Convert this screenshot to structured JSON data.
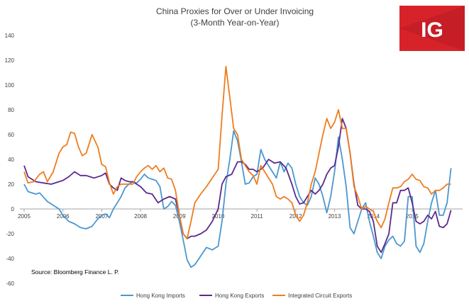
{
  "chart_data": {
    "type": "line",
    "title": "China Proxies for Over or Under Invoicing",
    "subtitle": "(3-Month Year-on-Year)",
    "ylim": [
      -60,
      140
    ],
    "yticks": [
      140,
      120,
      100,
      80,
      60,
      40,
      20,
      0,
      -20,
      -40,
      -60
    ],
    "xlim": [
      2005.0,
      2016.3
    ],
    "xticks": [
      {
        "label": "2005",
        "x": 2005.0
      },
      {
        "label": "2006",
        "x": 2006.0
      },
      {
        "label": "2007",
        "x": 2007.0
      },
      {
        "label": "2008",
        "x": 2008.0
      },
      {
        "label": "2009",
        "x": 2009.0
      },
      {
        "label": "2010",
        "x": 2010.0
      },
      {
        "label": "2011",
        "x": 2011.0
      },
      {
        "label": "2012",
        "x": 2012.0
      },
      {
        "label": "2013",
        "x": 2013.0
      },
      {
        "label": "2014",
        "x": 2014.0
      },
      {
        "label": "2015",
        "x": 2015.0
      }
    ],
    "source": "Source: Bloomberg Finance L. P.",
    "logo": "IG",
    "series": [
      {
        "name": "Hong Kong Imports",
        "color": "#4a97d0",
        "points": [
          [
            2005.0,
            20
          ],
          [
            2005.1,
            14
          ],
          [
            2005.3,
            12
          ],
          [
            2005.4,
            13
          ],
          [
            2005.6,
            6
          ],
          [
            2005.75,
            3
          ],
          [
            2005.9,
            0
          ],
          [
            2006.0,
            -5
          ],
          [
            2006.15,
            -10
          ],
          [
            2006.3,
            -12
          ],
          [
            2006.45,
            -15
          ],
          [
            2006.6,
            -16
          ],
          [
            2006.75,
            -14
          ],
          [
            2006.9,
            -8
          ],
          [
            2007.0,
            -5
          ],
          [
            2007.1,
            -4
          ],
          [
            2007.2,
            -7
          ],
          [
            2007.3,
            0
          ],
          [
            2007.4,
            5
          ],
          [
            2007.5,
            10
          ],
          [
            2007.6,
            17
          ],
          [
            2007.7,
            20
          ],
          [
            2007.8,
            22
          ],
          [
            2007.9,
            21
          ],
          [
            2008.0,
            24
          ],
          [
            2008.1,
            28
          ],
          [
            2008.2,
            25
          ],
          [
            2008.3,
            24
          ],
          [
            2008.4,
            23
          ],
          [
            2008.5,
            18
          ],
          [
            2008.6,
            0
          ],
          [
            2008.7,
            2
          ],
          [
            2008.8,
            6
          ],
          [
            2008.9,
            3
          ],
          [
            2009.0,
            -10
          ],
          [
            2009.1,
            -25
          ],
          [
            2009.2,
            -41
          ],
          [
            2009.3,
            -47
          ],
          [
            2009.4,
            -45
          ],
          [
            2009.55,
            -38
          ],
          [
            2009.7,
            -31
          ],
          [
            2009.85,
            -33
          ],
          [
            2010.0,
            -30
          ],
          [
            2010.1,
            -10
          ],
          [
            2010.2,
            20
          ],
          [
            2010.3,
            40
          ],
          [
            2010.4,
            63
          ],
          [
            2010.5,
            55
          ],
          [
            2010.6,
            38
          ],
          [
            2010.7,
            20
          ],
          [
            2010.8,
            21
          ],
          [
            2010.9,
            26
          ],
          [
            2011.0,
            28
          ],
          [
            2011.1,
            48
          ],
          [
            2011.2,
            40
          ],
          [
            2011.3,
            35
          ],
          [
            2011.4,
            30
          ],
          [
            2011.5,
            25
          ],
          [
            2011.6,
            38
          ],
          [
            2011.7,
            30
          ],
          [
            2011.8,
            37
          ],
          [
            2011.9,
            33
          ],
          [
            2012.0,
            20
          ],
          [
            2012.1,
            10
          ],
          [
            2012.2,
            5
          ],
          [
            2012.3,
            3
          ],
          [
            2012.4,
            10
          ],
          [
            2012.5,
            25
          ],
          [
            2012.6,
            20
          ],
          [
            2012.7,
            10
          ],
          [
            2012.8,
            -3
          ],
          [
            2012.9,
            10
          ],
          [
            2013.0,
            30
          ],
          [
            2013.1,
            58
          ],
          [
            2013.2,
            40
          ],
          [
            2013.3,
            18
          ],
          [
            2013.4,
            -15
          ],
          [
            2013.5,
            -20
          ],
          [
            2013.6,
            -10
          ],
          [
            2013.7,
            0
          ],
          [
            2013.8,
            5
          ],
          [
            2013.9,
            -10
          ],
          [
            2014.0,
            -22
          ],
          [
            2014.1,
            -35
          ],
          [
            2014.2,
            -40
          ],
          [
            2014.3,
            -30
          ],
          [
            2014.4,
            -25
          ],
          [
            2014.5,
            -22
          ],
          [
            2014.6,
            -28
          ],
          [
            2014.7,
            -30
          ],
          [
            2014.8,
            -26
          ],
          [
            2014.9,
            10
          ],
          [
            2015.0,
            10
          ],
          [
            2015.1,
            -30
          ],
          [
            2015.2,
            -35
          ],
          [
            2015.3,
            -28
          ],
          [
            2015.4,
            -10
          ],
          [
            2015.5,
            5
          ],
          [
            2015.6,
            15
          ],
          [
            2015.7,
            -5
          ],
          [
            2015.8,
            -5
          ],
          [
            2015.9,
            5
          ],
          [
            2016.0,
            33
          ]
        ]
      },
      {
        "name": "Hong Kong Exports",
        "color": "#5b2a8c",
        "points": [
          [
            2005.0,
            35
          ],
          [
            2005.1,
            26
          ],
          [
            2005.3,
            22
          ],
          [
            2005.5,
            21
          ],
          [
            2005.7,
            20
          ],
          [
            2005.9,
            22
          ],
          [
            2006.0,
            23
          ],
          [
            2006.15,
            26
          ],
          [
            2006.3,
            30
          ],
          [
            2006.45,
            27
          ],
          [
            2006.6,
            27
          ],
          [
            2006.8,
            25
          ],
          [
            2007.0,
            27
          ],
          [
            2007.1,
            29
          ],
          [
            2007.2,
            20
          ],
          [
            2007.3,
            17
          ],
          [
            2007.4,
            15
          ],
          [
            2007.5,
            25
          ],
          [
            2007.6,
            23
          ],
          [
            2007.7,
            22
          ],
          [
            2007.8,
            22
          ],
          [
            2007.9,
            20
          ],
          [
            2008.0,
            18
          ],
          [
            2008.15,
            13
          ],
          [
            2008.3,
            12
          ],
          [
            2008.45,
            5
          ],
          [
            2008.6,
            8
          ],
          [
            2008.75,
            10
          ],
          [
            2008.9,
            8
          ],
          [
            2009.0,
            -5
          ],
          [
            2009.1,
            -20
          ],
          [
            2009.2,
            -24
          ],
          [
            2009.3,
            -22
          ],
          [
            2009.4,
            -22
          ],
          [
            2009.55,
            -20
          ],
          [
            2009.7,
            -17
          ],
          [
            2009.85,
            -10
          ],
          [
            2010.0,
            0
          ],
          [
            2010.1,
            20
          ],
          [
            2010.2,
            26
          ],
          [
            2010.35,
            28
          ],
          [
            2010.5,
            38
          ],
          [
            2010.6,
            38
          ],
          [
            2010.7,
            36
          ],
          [
            2010.8,
            32
          ],
          [
            2010.9,
            32
          ],
          [
            2011.0,
            30
          ],
          [
            2011.15,
            33
          ],
          [
            2011.3,
            40
          ],
          [
            2011.45,
            37
          ],
          [
            2011.6,
            38
          ],
          [
            2011.75,
            33
          ],
          [
            2011.9,
            20
          ],
          [
            2012.0,
            10
          ],
          [
            2012.1,
            4
          ],
          [
            2012.2,
            5
          ],
          [
            2012.3,
            10
          ],
          [
            2012.4,
            15
          ],
          [
            2012.5,
            12
          ],
          [
            2012.6,
            15
          ],
          [
            2012.7,
            20
          ],
          [
            2012.8,
            28
          ],
          [
            2012.9,
            33
          ],
          [
            2013.0,
            35
          ],
          [
            2013.1,
            50
          ],
          [
            2013.2,
            73
          ],
          [
            2013.3,
            65
          ],
          [
            2013.4,
            45
          ],
          [
            2013.5,
            20
          ],
          [
            2013.6,
            3
          ],
          [
            2013.7,
            0
          ],
          [
            2013.8,
            0
          ],
          [
            2013.9,
            -2
          ],
          [
            2014.0,
            -10
          ],
          [
            2014.1,
            -30
          ],
          [
            2014.2,
            -35
          ],
          [
            2014.3,
            -28
          ],
          [
            2014.4,
            -20
          ],
          [
            2014.5,
            5
          ],
          [
            2014.6,
            5
          ],
          [
            2014.7,
            15
          ],
          [
            2014.8,
            15
          ],
          [
            2014.9,
            17
          ],
          [
            2015.0,
            5
          ],
          [
            2015.1,
            -10
          ],
          [
            2015.2,
            -12
          ],
          [
            2015.3,
            -10
          ],
          [
            2015.4,
            -5
          ],
          [
            2015.5,
            -8
          ],
          [
            2015.6,
            -2
          ],
          [
            2015.7,
            -14
          ],
          [
            2015.8,
            -15
          ],
          [
            2015.9,
            -12
          ],
          [
            2016.0,
            -1
          ]
        ]
      },
      {
        "name": "Integrated Circuit Exports",
        "color": "#ee7d1e",
        "points": [
          [
            2005.0,
            30
          ],
          [
            2005.1,
            21
          ],
          [
            2005.25,
            22
          ],
          [
            2005.4,
            28
          ],
          [
            2005.5,
            30
          ],
          [
            2005.6,
            22
          ],
          [
            2005.75,
            30
          ],
          [
            2005.9,
            45
          ],
          [
            2006.0,
            50
          ],
          [
            2006.1,
            52
          ],
          [
            2006.2,
            62
          ],
          [
            2006.3,
            61
          ],
          [
            2006.4,
            50
          ],
          [
            2006.5,
            43
          ],
          [
            2006.6,
            45
          ],
          [
            2006.75,
            60
          ],
          [
            2006.9,
            50
          ],
          [
            2007.0,
            36
          ],
          [
            2007.1,
            34
          ],
          [
            2007.2,
            21
          ],
          [
            2007.3,
            12
          ],
          [
            2007.4,
            18
          ],
          [
            2007.5,
            20
          ],
          [
            2007.65,
            20
          ],
          [
            2007.8,
            20
          ],
          [
            2007.9,
            26
          ],
          [
            2008.0,
            30
          ],
          [
            2008.1,
            33
          ],
          [
            2008.2,
            35
          ],
          [
            2008.3,
            32
          ],
          [
            2008.4,
            35
          ],
          [
            2008.5,
            30
          ],
          [
            2008.6,
            33
          ],
          [
            2008.7,
            25
          ],
          [
            2008.8,
            24
          ],
          [
            2008.9,
            15
          ],
          [
            2009.0,
            -5
          ],
          [
            2009.1,
            -20
          ],
          [
            2009.2,
            -24
          ],
          [
            2009.3,
            -10
          ],
          [
            2009.4,
            5
          ],
          [
            2009.55,
            12
          ],
          [
            2009.7,
            18
          ],
          [
            2009.85,
            25
          ],
          [
            2010.0,
            32
          ],
          [
            2010.1,
            75
          ],
          [
            2010.2,
            115
          ],
          [
            2010.3,
            90
          ],
          [
            2010.4,
            65
          ],
          [
            2010.5,
            60
          ],
          [
            2010.6,
            40
          ],
          [
            2010.7,
            35
          ],
          [
            2010.8,
            30
          ],
          [
            2010.9,
            27
          ],
          [
            2011.0,
            20
          ],
          [
            2011.1,
            35
          ],
          [
            2011.2,
            30
          ],
          [
            2011.3,
            25
          ],
          [
            2011.4,
            20
          ],
          [
            2011.5,
            10
          ],
          [
            2011.6,
            8
          ],
          [
            2011.7,
            10
          ],
          [
            2011.8,
            8
          ],
          [
            2011.9,
            5
          ],
          [
            2012.0,
            -5
          ],
          [
            2012.1,
            -10
          ],
          [
            2012.2,
            -5
          ],
          [
            2012.3,
            5
          ],
          [
            2012.4,
            20
          ],
          [
            2012.5,
            30
          ],
          [
            2012.6,
            45
          ],
          [
            2012.7,
            60
          ],
          [
            2012.8,
            73
          ],
          [
            2012.9,
            65
          ],
          [
            2013.0,
            70
          ],
          [
            2013.1,
            80
          ],
          [
            2013.2,
            65
          ],
          [
            2013.3,
            65
          ],
          [
            2013.4,
            45
          ],
          [
            2013.5,
            18
          ],
          [
            2013.6,
            10
          ],
          [
            2013.7,
            0
          ],
          [
            2013.8,
            2
          ],
          [
            2013.9,
            0
          ],
          [
            2014.0,
            -2
          ],
          [
            2014.1,
            -10
          ],
          [
            2014.2,
            -15
          ],
          [
            2014.3,
            -8
          ],
          [
            2014.4,
            5
          ],
          [
            2014.5,
            17
          ],
          [
            2014.6,
            17
          ],
          [
            2014.7,
            18
          ],
          [
            2014.8,
            22
          ],
          [
            2014.9,
            24
          ],
          [
            2015.0,
            28
          ],
          [
            2015.1,
            24
          ],
          [
            2015.2,
            23
          ],
          [
            2015.3,
            18
          ],
          [
            2015.4,
            17
          ],
          [
            2015.5,
            12
          ],
          [
            2015.6,
            15
          ],
          [
            2015.7,
            15
          ],
          [
            2015.8,
            17
          ],
          [
            2015.9,
            20
          ],
          [
            2016.0,
            20
          ]
        ]
      }
    ]
  }
}
